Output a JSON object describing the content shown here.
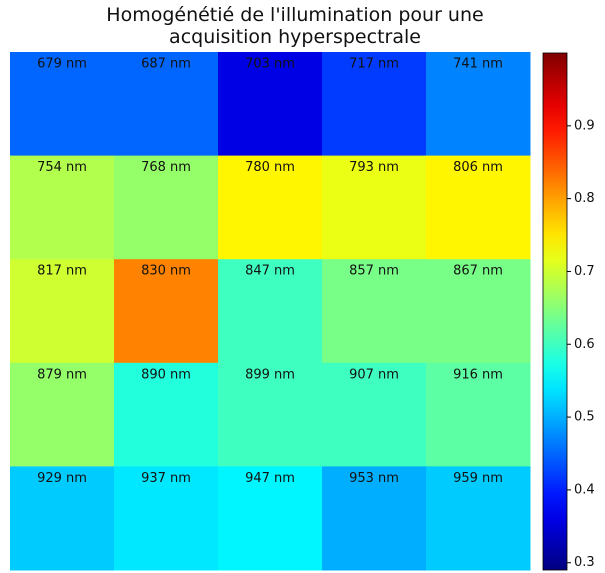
{
  "chart_data": {
    "type": "heatmap",
    "title": "Homogénétié de l'illumination pour une acquisition hyperspectrale",
    "colormap": "jet",
    "labels": [
      "679 nm",
      "687 nm",
      "703 nm",
      "717 nm",
      "741 nm",
      "754 nm",
      "768 nm",
      "780 nm",
      "793 nm",
      "806 nm",
      "817 nm",
      "830 nm",
      "847 nm",
      "857 nm",
      "867 nm",
      "879 nm",
      "890 nm",
      "899 nm",
      "907 nm",
      "916 nm",
      "929 nm",
      "937 nm",
      "947 nm",
      "953 nm",
      "959 nm"
    ],
    "values": [
      0.45,
      0.45,
      0.36,
      0.42,
      0.47,
      0.68,
      0.66,
      0.74,
      0.72,
      0.74,
      0.7,
      0.82,
      0.6,
      0.64,
      0.64,
      0.66,
      0.58,
      0.6,
      0.6,
      0.62,
      0.52,
      0.54,
      0.55,
      0.5,
      0.52
    ],
    "clim": [
      0.29,
      1.0
    ],
    "cticks": [
      0.3,
      0.4,
      0.5,
      0.6,
      0.7,
      0.8,
      0.9
    ]
  }
}
